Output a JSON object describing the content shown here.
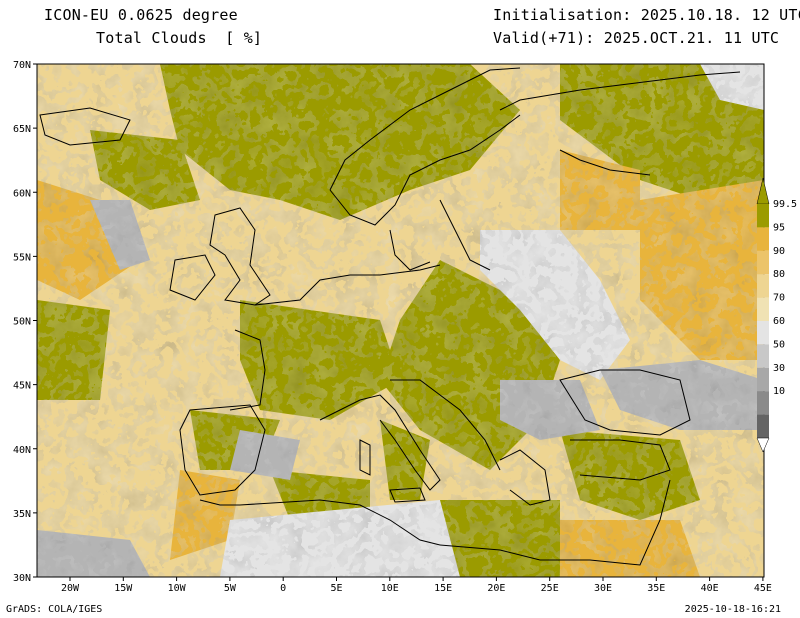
{
  "header": {
    "model": "ICON-EU 0.0625 degree",
    "field": "Total Clouds  [ %]",
    "init": "Initialisation: 2025.10.18. 12 UTC",
    "valid": "Valid(+71): 2025.OCT.21. 11 UTC"
  },
  "footer": {
    "left": "GrADS: COLA/IGES",
    "right": "2025-10-18-16:21"
  },
  "map": {
    "lon_ticks": [
      "20W",
      "15W",
      "10W",
      "5W",
      "0",
      "5E",
      "10E",
      "15E",
      "20E",
      "25E",
      "30E",
      "35E",
      "40E",
      "45E"
    ],
    "lat_ticks": [
      "70N",
      "65N",
      "60N",
      "55N",
      "50N",
      "45N",
      "40N",
      "35N",
      "30N"
    ]
  },
  "legend": {
    "labels": [
      "99.5",
      "95",
      "90",
      "80",
      "70",
      "60",
      "50",
      "30",
      "10"
    ],
    "colors": [
      "#9b9b00",
      "#e8b43c",
      "#ecc46a",
      "#eed592",
      "#f0e2b4",
      "#e4e4e4",
      "#c8c8c8",
      "#a8a8a8",
      "#8a8a8a",
      "#646464"
    ]
  },
  "colors": {
    "overcast": "#9b9b00",
    "cloud_high": "#e8b43c",
    "cloud_mid": "#eed592",
    "clear": "#e4e4e4",
    "grey": "#b4b4b4",
    "coast": "#000000"
  }
}
